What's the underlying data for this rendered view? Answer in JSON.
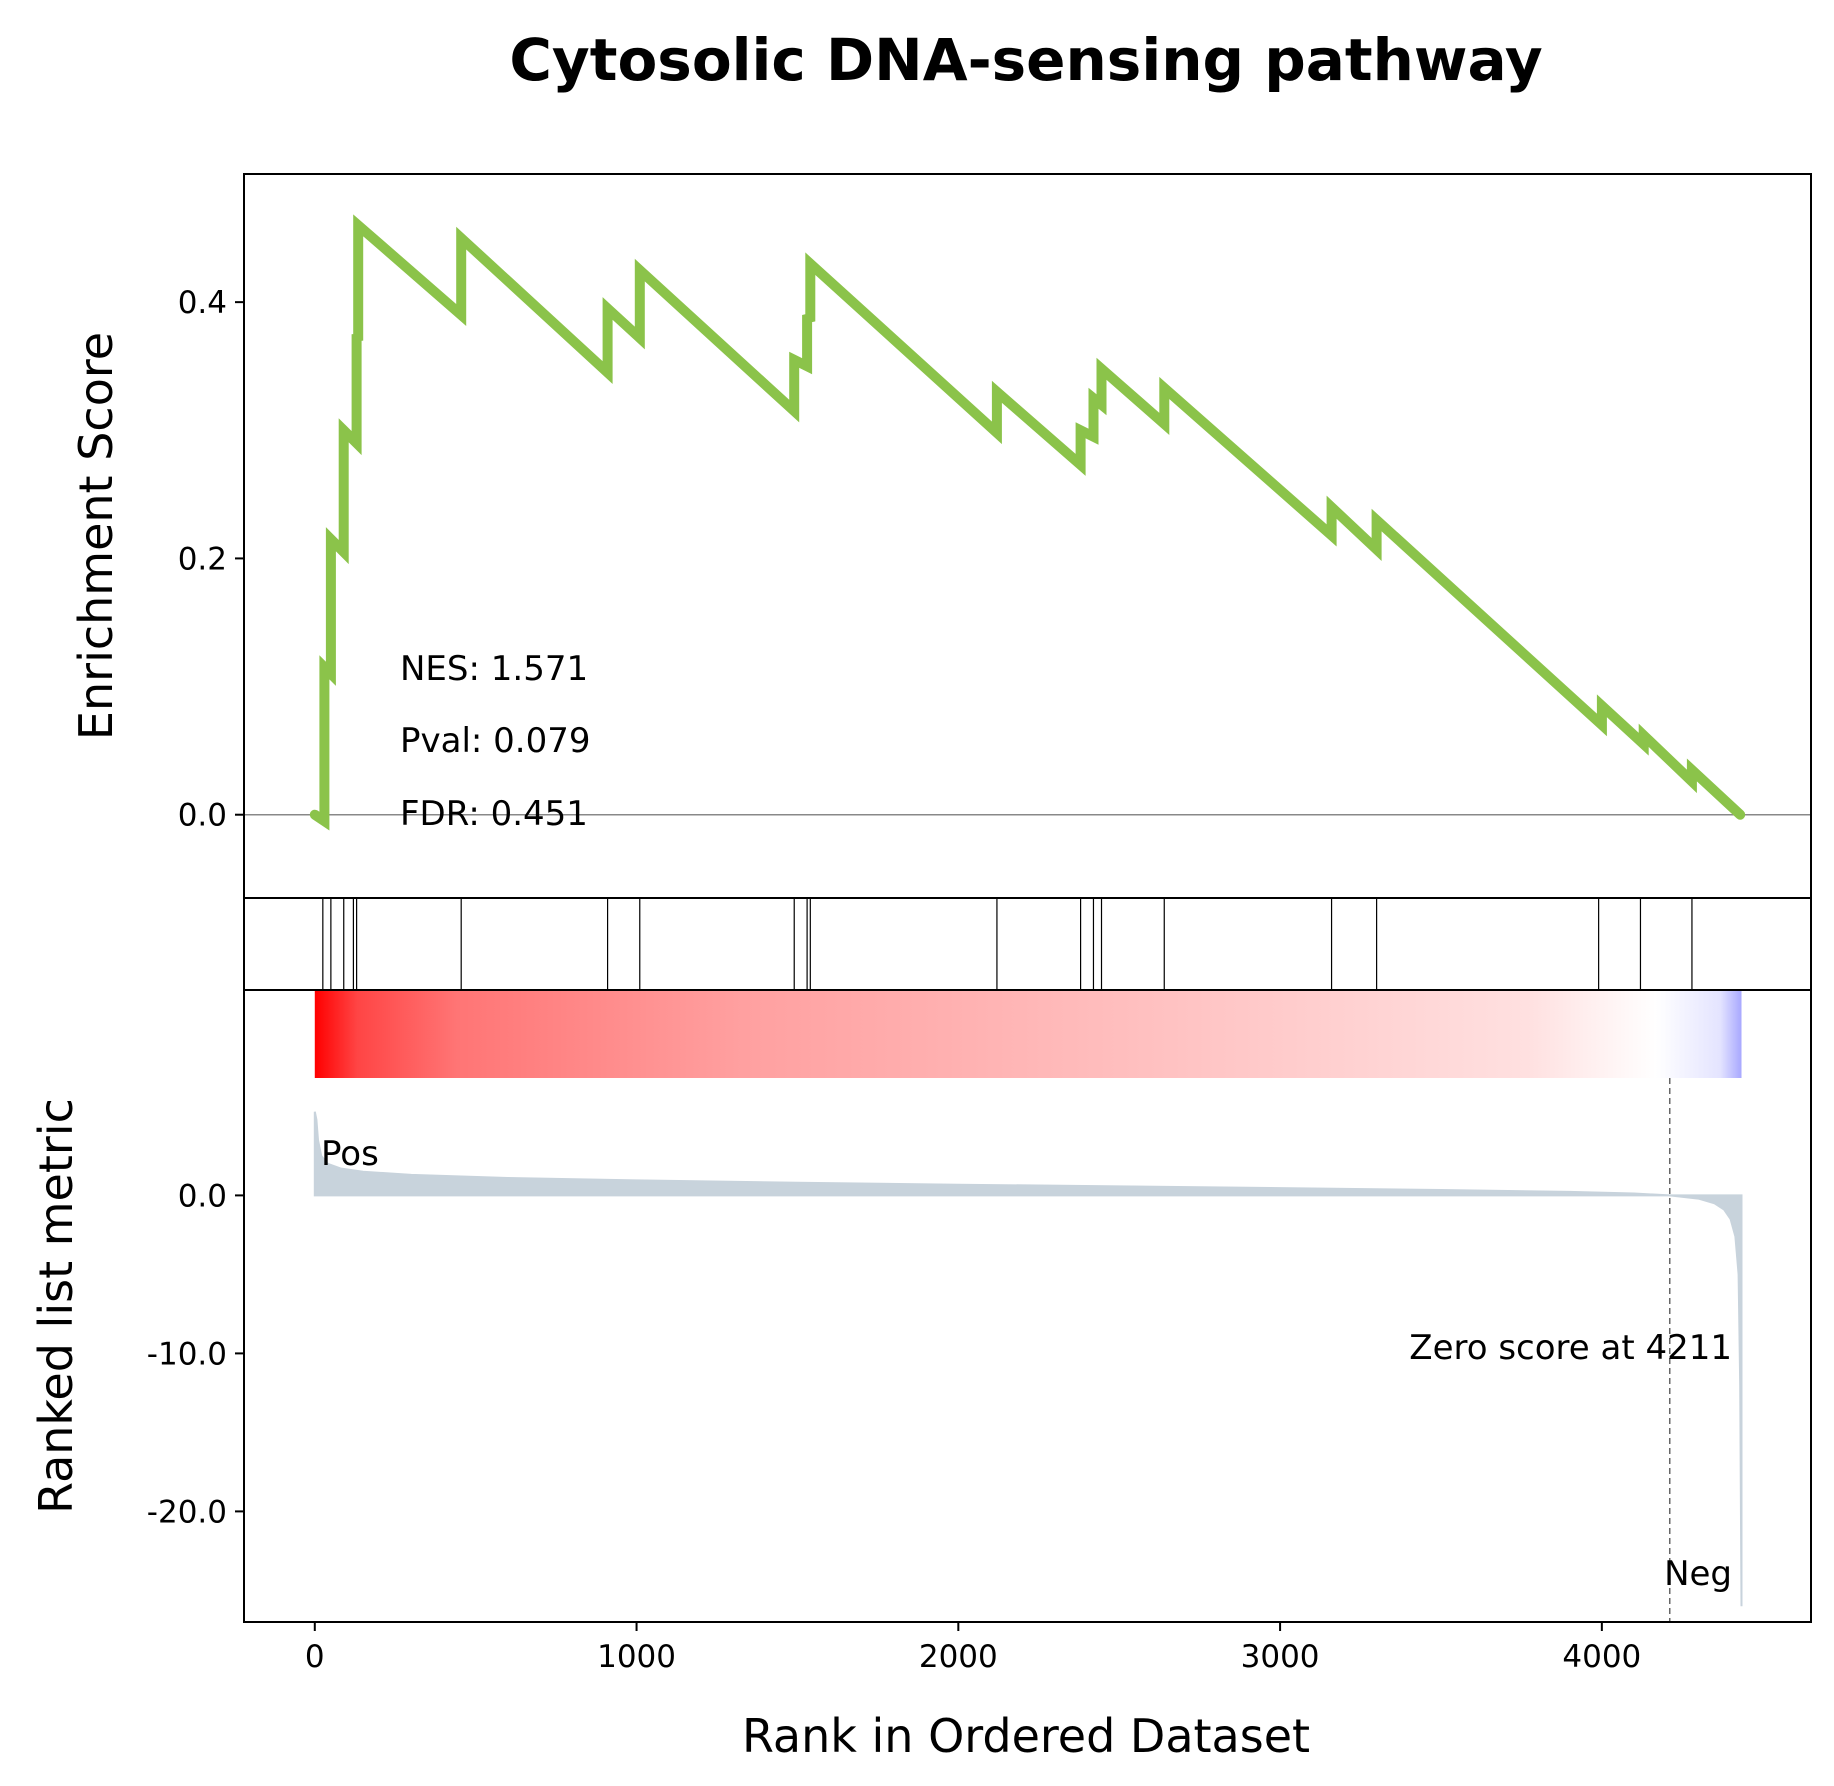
{
  "chart_data": {
    "type": "line",
    "title": "Cytosolic DNA-sensing pathway",
    "xlabel": "Rank in Ordered Dataset",
    "xlim": [
      -220,
      4650
    ],
    "xticks": [
      0,
      1000,
      2000,
      3000,
      4000
    ],
    "xtick_labels": [
      "0",
      "1000",
      "2000",
      "3000",
      "4000"
    ],
    "enrichment": {
      "ylabel": "Enrichment Score",
      "ylim": [
        -0.065,
        0.5
      ],
      "yticks": [
        0.0,
        0.2,
        0.4
      ],
      "ytick_labels": [
        "0.0",
        "0.2",
        "0.4"
      ],
      "line_color": "#8bc34a",
      "zero_line_color": "#888888",
      "x": [
        0,
        30,
        30,
        50,
        50,
        90,
        90,
        130,
        130,
        135,
        135,
        455,
        455,
        910,
        910,
        1010,
        1010,
        1490,
        1490,
        1530,
        1530,
        1540,
        1540,
        2120,
        2120,
        2380,
        2380,
        2420,
        2420,
        2445,
        2445,
        2640,
        2640,
        3160,
        3160,
        3300,
        3300,
        4000,
        4000,
        4130,
        4130,
        4280,
        4280,
        4430
      ],
      "y": [
        0.0,
        -0.005,
        0.115,
        0.11,
        0.215,
        0.205,
        0.3,
        0.29,
        0.375,
        0.37,
        0.46,
        0.39,
        0.45,
        0.345,
        0.395,
        0.372,
        0.425,
        0.315,
        0.355,
        0.35,
        0.39,
        0.385,
        0.43,
        0.298,
        0.33,
        0.273,
        0.3,
        0.295,
        0.325,
        0.32,
        0.348,
        0.305,
        0.333,
        0.218,
        0.24,
        0.207,
        0.23,
        0.07,
        0.085,
        0.055,
        0.062,
        0.026,
        0.035,
        0.0
      ],
      "annotations": [
        "NES: 1.571",
        "Pval: 0.079",
        "FDR: 0.451"
      ]
    },
    "hits": {
      "positions": [
        25,
        50,
        90,
        120,
        130,
        455,
        910,
        1010,
        1490,
        1530,
        1540,
        2120,
        2380,
        2420,
        2445,
        2640,
        3160,
        3300,
        3990,
        4120,
        4280
      ],
      "color": "#000000"
    },
    "ranked_metric": {
      "ylabel": "Ranked list metric",
      "ylim": [
        -27,
        13
      ],
      "yticks": [
        0.0,
        -10.0,
        -20.0
      ],
      "ytick_labels": [
        "0.0",
        "-10.0",
        "-20.0"
      ],
      "fill_color": "#c8d3dc",
      "x": [
        0,
        5,
        10,
        20,
        40,
        80,
        150,
        300,
        600,
        1000,
        1500,
        2000,
        2500,
        3000,
        3500,
        3900,
        4100,
        4211,
        4300,
        4350,
        4380,
        4400,
        4415,
        4425,
        4430,
        4434
      ],
      "y": [
        5.3,
        4.8,
        3.5,
        2.5,
        2.0,
        1.7,
        1.5,
        1.3,
        1.1,
        0.95,
        0.8,
        0.68,
        0.57,
        0.46,
        0.34,
        0.22,
        0.12,
        0.0,
        -0.2,
        -0.5,
        -0.9,
        -1.5,
        -2.6,
        -5.0,
        -12.0,
        -26.0
      ],
      "zero_score_label": "Zero score at 4211",
      "zero_score_rank": 4211,
      "pos_label": "Pos",
      "neg_label": "Neg",
      "pos_color": "#ff0000",
      "neg_color": "#0000ff",
      "heatmap_range": [
        0,
        4434
      ]
    }
  }
}
